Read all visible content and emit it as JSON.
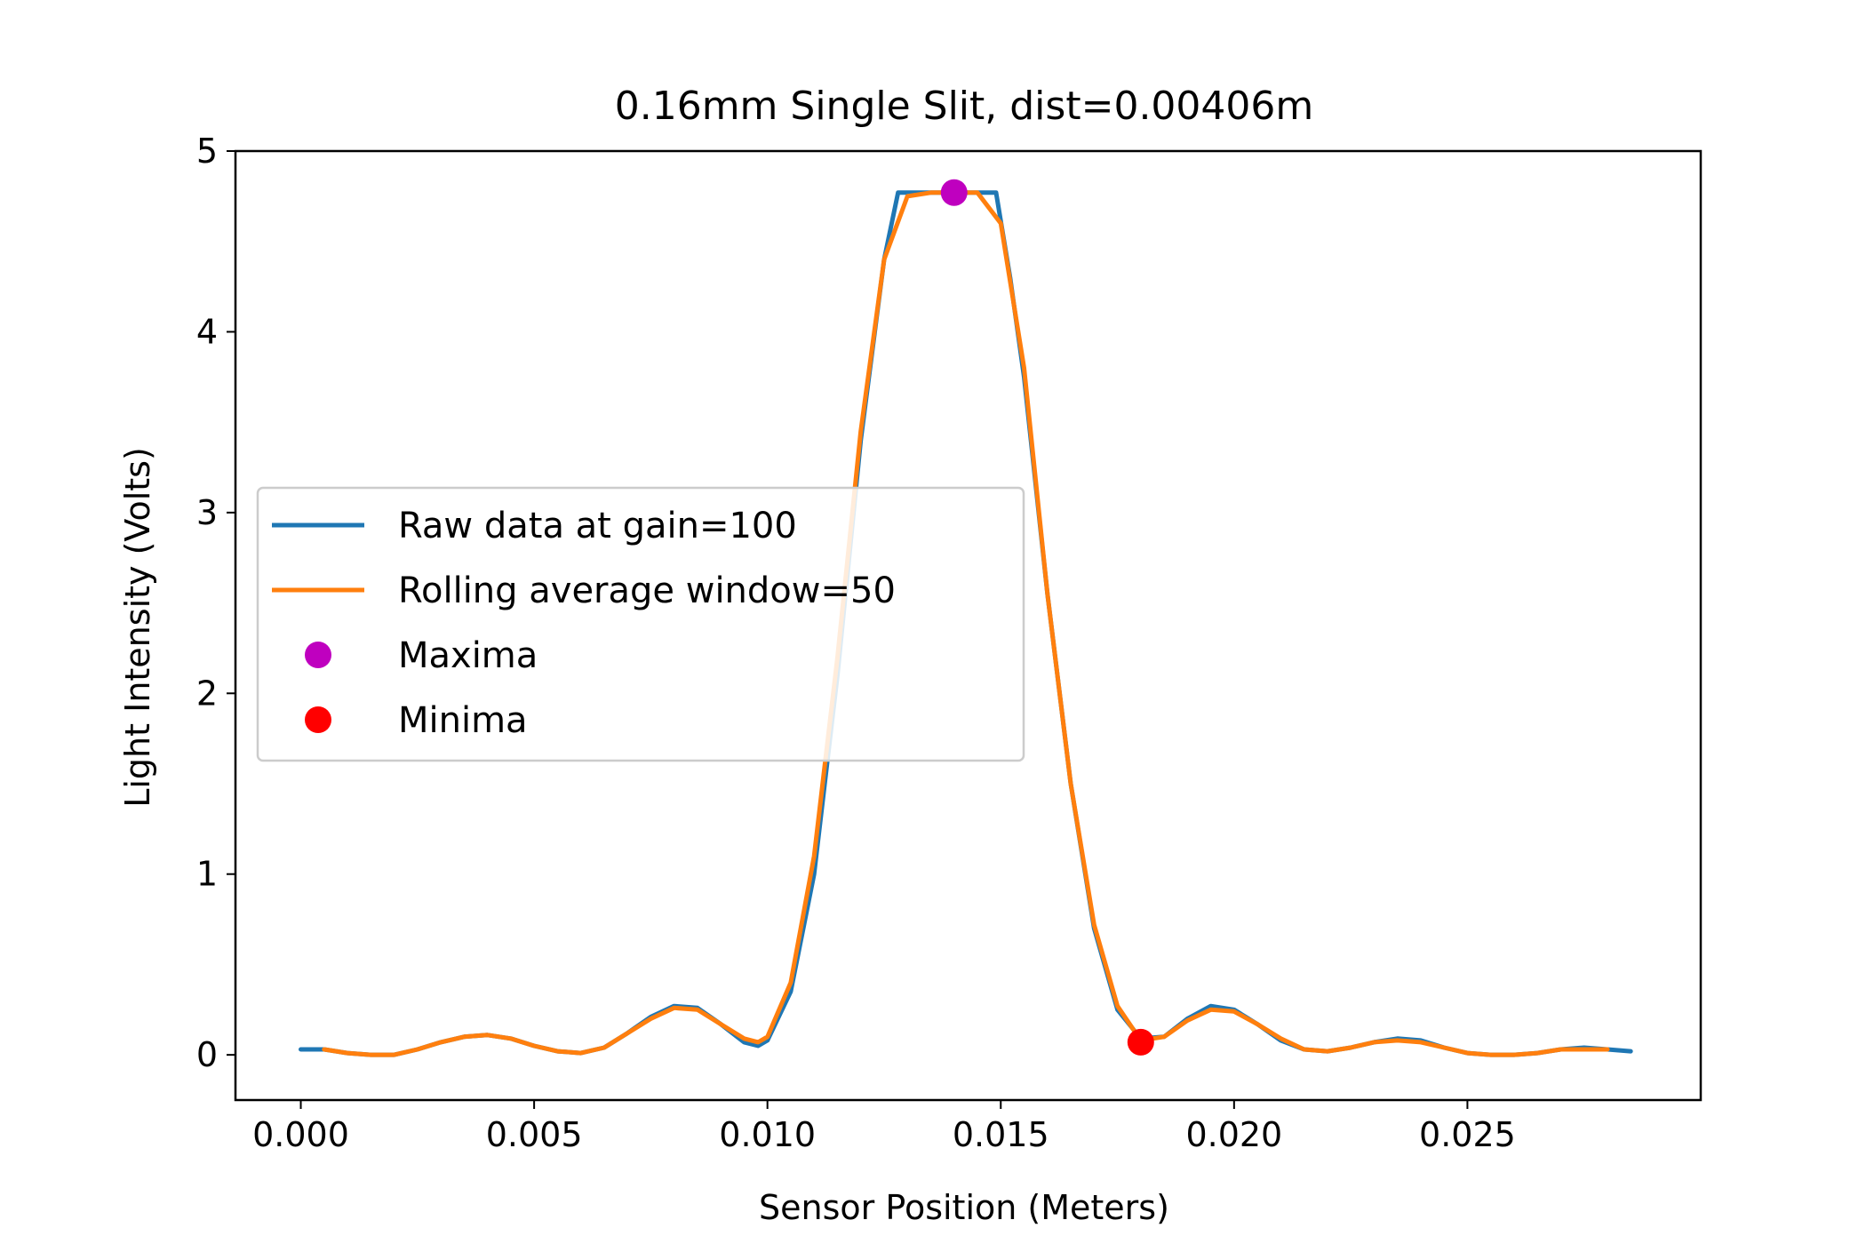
{
  "chart_data": {
    "type": "line",
    "title": "0.16mm Single Slit, dist=0.00406m",
    "xlabel": "Sensor Position (Meters)",
    "ylabel": "Light Intensity (Volts)",
    "xlim": [
      -0.0014,
      0.03
    ],
    "ylim": [
      -0.25,
      5.0
    ],
    "xticks": [
      0.0,
      0.005,
      0.01,
      0.015,
      0.02,
      0.025
    ],
    "xtick_labels": [
      "0.000",
      "0.005",
      "0.010",
      "0.015",
      "0.020",
      "0.025"
    ],
    "yticks": [
      0,
      1,
      2,
      3,
      4,
      5
    ],
    "ytick_labels": [
      "0",
      "1",
      "2",
      "3",
      "4",
      "5"
    ],
    "legend_position": "center-left",
    "grid": false,
    "series": [
      {
        "name": "Raw data at gain=100",
        "kind": "line",
        "color": "#1f77b4",
        "x": [
          0.0,
          0.0005,
          0.001,
          0.0015,
          0.002,
          0.0025,
          0.003,
          0.0035,
          0.004,
          0.0045,
          0.005,
          0.0055,
          0.006,
          0.0065,
          0.007,
          0.0075,
          0.008,
          0.0085,
          0.009,
          0.0095,
          0.0098,
          0.01,
          0.0105,
          0.011,
          0.0115,
          0.012,
          0.0125,
          0.0128,
          0.0135,
          0.014,
          0.0145,
          0.0149,
          0.0152,
          0.0155,
          0.016,
          0.0165,
          0.017,
          0.0175,
          0.018,
          0.0185,
          0.019,
          0.0195,
          0.02,
          0.0205,
          0.021,
          0.0215,
          0.022,
          0.0225,
          0.023,
          0.0235,
          0.024,
          0.0245,
          0.025,
          0.0255,
          0.026,
          0.0265,
          0.027,
          0.0275,
          0.028,
          0.0285
        ],
        "y": [
          0.03,
          0.03,
          0.01,
          0.0,
          0.0,
          0.03,
          0.07,
          0.1,
          0.11,
          0.09,
          0.05,
          0.02,
          0.01,
          0.04,
          0.12,
          0.21,
          0.27,
          0.26,
          0.17,
          0.07,
          0.05,
          0.08,
          0.35,
          1.0,
          2.1,
          3.4,
          4.4,
          4.77,
          4.77,
          4.77,
          4.77,
          4.77,
          4.3,
          3.75,
          2.55,
          1.5,
          0.7,
          0.25,
          0.09,
          0.1,
          0.2,
          0.27,
          0.25,
          0.17,
          0.08,
          0.03,
          0.02,
          0.04,
          0.07,
          0.09,
          0.08,
          0.04,
          0.01,
          0.0,
          0.0,
          0.01,
          0.03,
          0.04,
          0.03,
          0.02
        ]
      },
      {
        "name": "Rolling average window=50",
        "kind": "line",
        "color": "#ff7f0e",
        "x": [
          0.0005,
          0.001,
          0.0015,
          0.002,
          0.0025,
          0.003,
          0.0035,
          0.004,
          0.0045,
          0.005,
          0.0055,
          0.006,
          0.0065,
          0.007,
          0.0075,
          0.008,
          0.0085,
          0.009,
          0.0095,
          0.0098,
          0.01,
          0.0105,
          0.011,
          0.0115,
          0.012,
          0.0125,
          0.013,
          0.0135,
          0.014,
          0.0145,
          0.015,
          0.0155,
          0.016,
          0.0165,
          0.017,
          0.0175,
          0.018,
          0.0185,
          0.019,
          0.0195,
          0.02,
          0.0205,
          0.021,
          0.0215,
          0.022,
          0.0225,
          0.023,
          0.0235,
          0.024,
          0.0245,
          0.025,
          0.0255,
          0.026,
          0.0265,
          0.027,
          0.0275,
          0.028
        ],
        "y": [
          0.03,
          0.01,
          0.0,
          0.0,
          0.03,
          0.07,
          0.1,
          0.11,
          0.09,
          0.05,
          0.02,
          0.01,
          0.04,
          0.12,
          0.2,
          0.26,
          0.25,
          0.17,
          0.09,
          0.07,
          0.1,
          0.4,
          1.1,
          2.2,
          3.45,
          4.4,
          4.75,
          4.77,
          4.77,
          4.77,
          4.6,
          3.8,
          2.55,
          1.5,
          0.72,
          0.27,
          0.08,
          0.1,
          0.19,
          0.25,
          0.24,
          0.17,
          0.09,
          0.03,
          0.02,
          0.04,
          0.07,
          0.08,
          0.07,
          0.04,
          0.01,
          0.0,
          0.0,
          0.01,
          0.03,
          0.03,
          0.03
        ]
      },
      {
        "name": "Maxima",
        "kind": "marker",
        "color": "#bf00bf",
        "x": [
          0.014
        ],
        "y": [
          4.77
        ]
      },
      {
        "name": "Minima",
        "kind": "marker",
        "color": "#ff0000",
        "x": [
          0.018
        ],
        "y": [
          0.07
        ]
      }
    ]
  }
}
